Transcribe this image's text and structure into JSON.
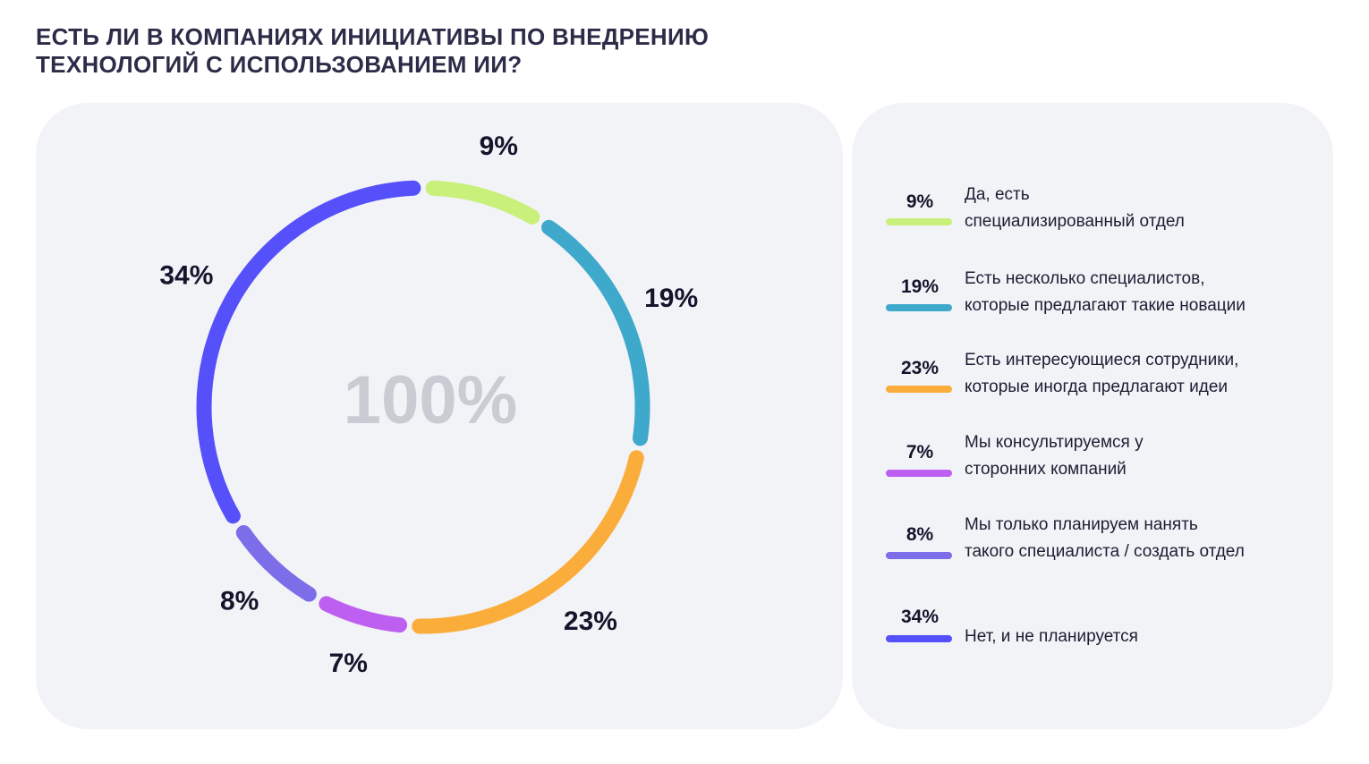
{
  "title": {
    "line1": "ЕСТЬ ЛИ В КОМПАНИЯХ ИНИЦИАТИВЫ ПО ВНЕДРЕНИЮ",
    "line2": "ТЕХНОЛОГИЙ С ИСПОЛЬЗОВАНИЕМ ИИ?"
  },
  "chart_data": {
    "type": "pie",
    "variant": "donut",
    "title": "ЕСТЬ ЛИ В КОМПАНИЯХ ИНИЦИАТИВЫ ПО ВНЕДРЕНИЮ ТЕХНОЛОГИЙ С ИСПОЛЬЗОВАНИЕМ ИИ?",
    "center_label": "100%",
    "total": 100,
    "categories": [
      "Да, есть специализированный отдел",
      "Есть несколько специалистов, которые предлагают такие новации",
      "Есть интересующиеся сотрудники, которые иногда предлагают идеи",
      "Мы консультируемся у сторонних компаний",
      "Мы только планируем нанять такого специалиста / создать отдел",
      "Нет, и не планируется"
    ],
    "values": [
      9,
      19,
      23,
      7,
      8,
      34
    ],
    "labels": [
      "9%",
      "19%",
      "23%",
      "7%",
      "8%",
      "34%"
    ],
    "colors": [
      "#c8f07a",
      "#3fa9cc",
      "#fbad3c",
      "#bd5ff0",
      "#7c6ee8",
      "#5650fb"
    ]
  },
  "legend": [
    {
      "pct": "9%",
      "line1": "Да, есть",
      "line2": "специализированный отдел",
      "color": "#c8f07a"
    },
    {
      "pct": "19%",
      "line1": "Есть несколько специалистов,",
      "line2": "которые предлагают такие новации",
      "color": "#3fa9cc"
    },
    {
      "pct": "23%",
      "line1": "Есть интересующиеся сотрудники,",
      "line2": "которые иногда предлагают идеи",
      "color": "#fbad3c"
    },
    {
      "pct": "7%",
      "line1": "Мы консультируемся у",
      "line2": "сторонних компаний",
      "color": "#bd5ff0"
    },
    {
      "pct": "8%",
      "line1": "Мы только планируем нанять",
      "line2": "такого специалиста / создать отдел",
      "color": "#7c6ee8"
    },
    {
      "pct": "34%",
      "line1": "Нет, и не планируется",
      "line2": "",
      "color": "#5650fb"
    }
  ]
}
